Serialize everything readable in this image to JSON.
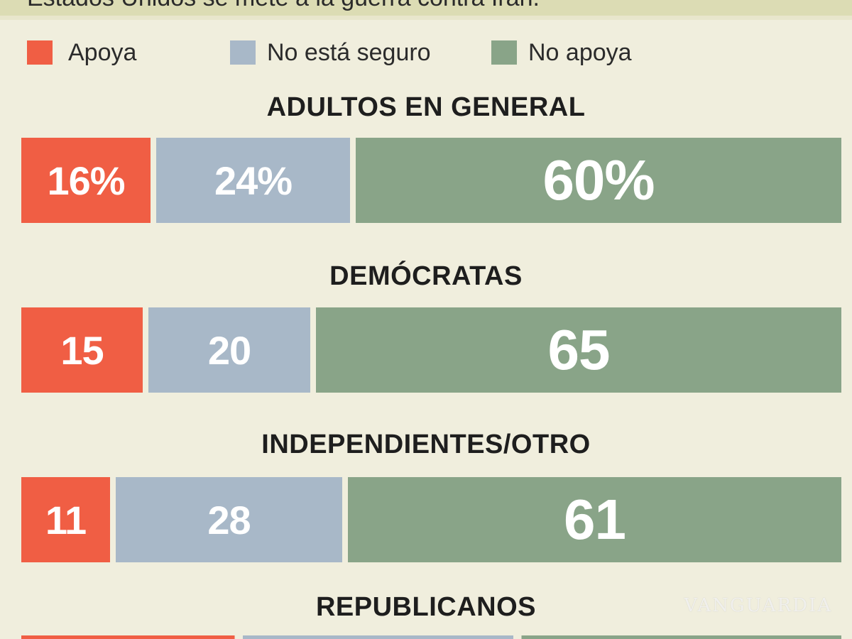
{
  "header": {
    "title_fragment": "Estados Unidos se mete a la guerra contra Irán."
  },
  "colors": {
    "apoya": "#f05e44",
    "no_seguro": "#a8b8c8",
    "no_apoya": "#89a488"
  },
  "legend": [
    {
      "label": "Apoya",
      "color_key": "apoya"
    },
    {
      "label": "No está seguro",
      "color_key": "no_seguro"
    },
    {
      "label": "No apoya",
      "color_key": "no_apoya"
    }
  ],
  "chart_data": {
    "type": "bar",
    "orientation": "horizontal-stacked",
    "unit": "%",
    "series_names": [
      "Apoya",
      "No está seguro",
      "No apoya"
    ],
    "groups": [
      {
        "name": "ADULTOS EN GENERAL",
        "values": [
          16,
          24,
          60
        ],
        "labels": [
          "16%",
          "24%",
          "60%"
        ]
      },
      {
        "name": "DEMÓCRATAS",
        "values": [
          15,
          20,
          65
        ],
        "labels": [
          "15",
          "20",
          "65"
        ]
      },
      {
        "name": "INDEPENDIENTES/OTRO",
        "values": [
          11,
          28,
          61
        ],
        "labels": [
          "11",
          "28",
          "61"
        ]
      },
      {
        "name": "REPUBLICANOS",
        "values": [],
        "labels": []
      }
    ]
  },
  "watermark": "VANGUARDIA"
}
